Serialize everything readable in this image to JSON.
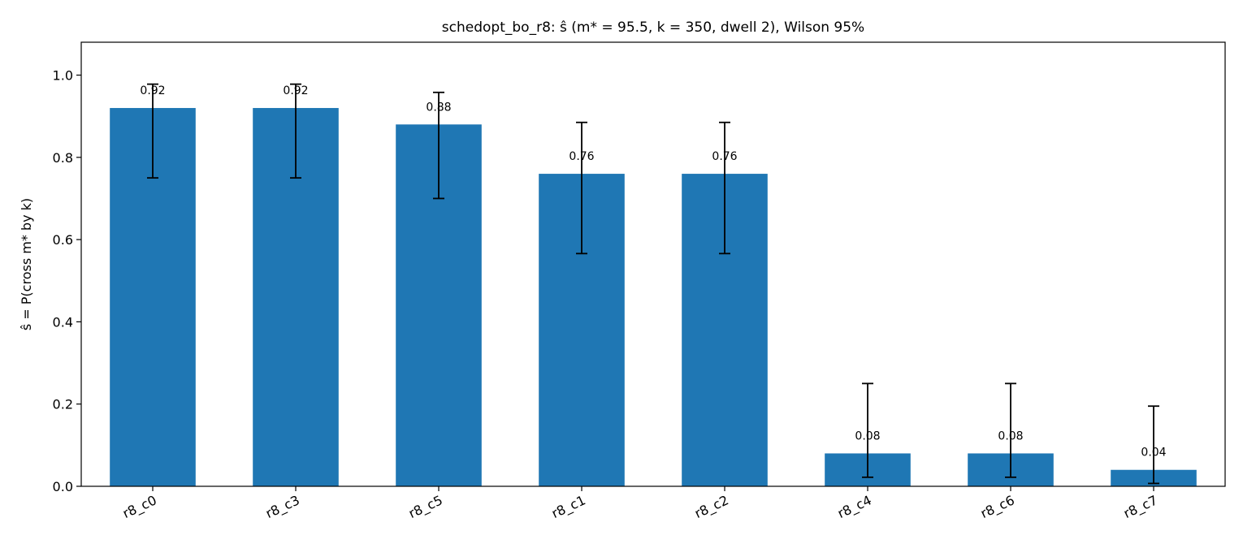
{
  "chart_data": {
    "type": "bar",
    "title": "schedopt_bo_r8: ŝ (m* = 95.5, k = 350, dwell 2), Wilson 95%",
    "xlabel": "",
    "ylabel": "ŝ = P(cross m* by k)",
    "ylim": [
      0,
      1.08
    ],
    "yticks": [
      0.0,
      0.2,
      0.4,
      0.6,
      0.8,
      1.0
    ],
    "ytick_labels": [
      "0.0",
      "0.2",
      "0.4",
      "0.6",
      "0.8",
      "1.0"
    ],
    "categories": [
      "r8_c0",
      "r8_c3",
      "r8_c5",
      "r8_c1",
      "r8_c2",
      "r8_c4",
      "r8_c6",
      "r8_c7"
    ],
    "values": [
      0.92,
      0.92,
      0.88,
      0.76,
      0.76,
      0.08,
      0.08,
      0.04
    ],
    "value_labels": [
      "0.92",
      "0.92",
      "0.88",
      "0.76",
      "0.76",
      "0.08",
      "0.08",
      "0.04"
    ],
    "ci_low": [
      0.75,
      0.75,
      0.7,
      0.566,
      0.566,
      0.022,
      0.022,
      0.007
    ],
    "ci_high": [
      0.978,
      0.978,
      0.958,
      0.885,
      0.885,
      0.25,
      0.25,
      0.195
    ],
    "bar_color": "#1f77b4",
    "errorbar_color": "#000000",
    "grid": false
  }
}
